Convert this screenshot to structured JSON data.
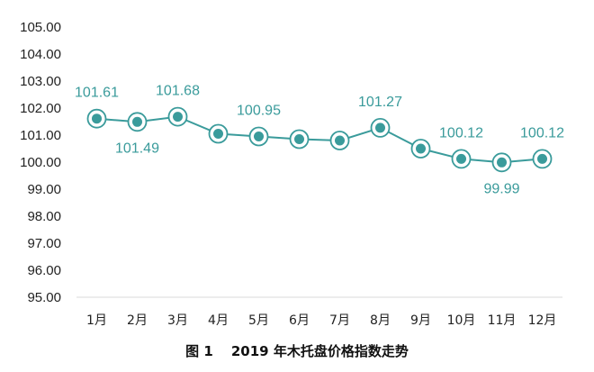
{
  "chart_data": {
    "type": "line",
    "title": "",
    "caption": {
      "prefix": "图 1",
      "text": "2019 年木托盘价格指数走势"
    },
    "xlabel": "",
    "ylabel": "",
    "categories": [
      "1月",
      "2月",
      "3月",
      "4月",
      "5月",
      "6月",
      "7月",
      "8月",
      "9月",
      "10月",
      "11月",
      "12月"
    ],
    "series": [
      {
        "values": [
          101.61,
          101.49,
          101.68,
          101.05,
          100.95,
          100.85,
          100.8,
          101.27,
          100.5,
          100.12,
          99.99,
          100.12
        ]
      }
    ],
    "data_labels": [
      {
        "index": 0,
        "text": "101.61",
        "position": "above"
      },
      {
        "index": 1,
        "text": "101.49",
        "position": "below"
      },
      {
        "index": 2,
        "text": "101.68",
        "position": "above"
      },
      {
        "index": 4,
        "text": "100.95",
        "position": "above"
      },
      {
        "index": 7,
        "text": "101.27",
        "position": "above"
      },
      {
        "index": 9,
        "text": "100.12",
        "position": "above"
      },
      {
        "index": 10,
        "text": "99.99",
        "position": "below"
      },
      {
        "index": 11,
        "text": "100.12",
        "position": "above"
      }
    ],
    "yticks": [
      "95.00",
      "96.00",
      "97.00",
      "98.00",
      "99.00",
      "100.00",
      "101.00",
      "102.00",
      "103.00",
      "104.00",
      "105.00"
    ],
    "ylim": [
      95,
      105
    ],
    "grid": false,
    "legend": "none",
    "colors": {
      "line": "#3a9b9b",
      "marker_fill": "#3a9b9b",
      "marker_ring": "#3a9b9b",
      "label": "#3a9b9b",
      "axis": "#d9d9d9"
    }
  }
}
